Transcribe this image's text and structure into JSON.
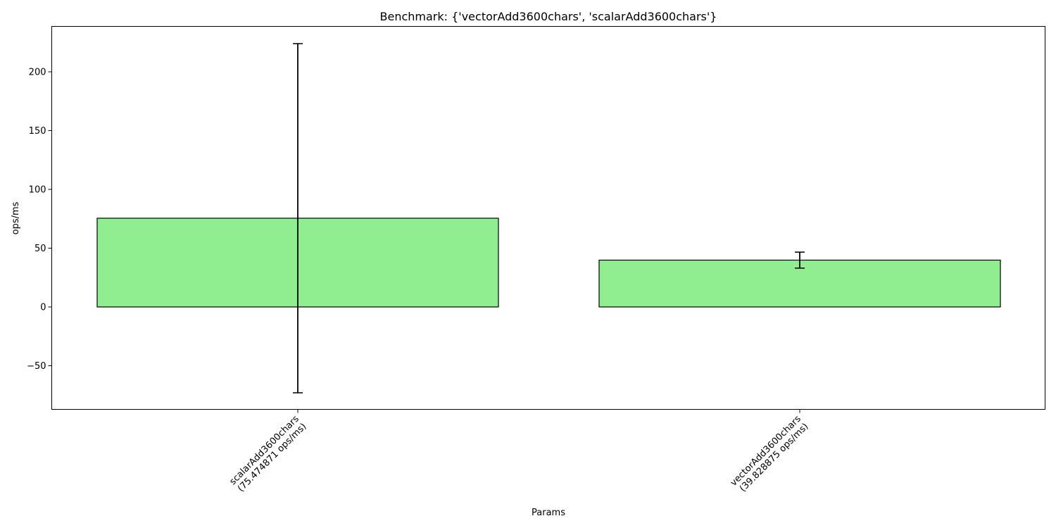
{
  "chart_data": {
    "type": "bar",
    "title": "Benchmark: {'vectorAdd3600chars', 'scalarAdd3600chars'}",
    "xlabel": "Params",
    "ylabel": "ops/ms",
    "categories": [
      "scalarAdd3600chars",
      "vectorAdd3600chars"
    ],
    "category_labels": [
      [
        "scalarAdd3600chars",
        "(75.474871 ops/ms)"
      ],
      [
        "vectorAdd3600chars",
        "(39.828875 ops/ms)"
      ]
    ],
    "values": [
      75.474871,
      39.828875
    ],
    "errors": [
      148.5,
      6.8
    ],
    "ylim": [
      -87,
      240
    ],
    "yticks": [
      -50,
      0,
      50,
      100,
      150,
      200
    ],
    "ytick_labels": [
      "−50",
      "0",
      "50",
      "100",
      "150",
      "200"
    ],
    "bar_color": "#90ee90",
    "edge_color": "#000000",
    "grid": false,
    "legend": false
  }
}
